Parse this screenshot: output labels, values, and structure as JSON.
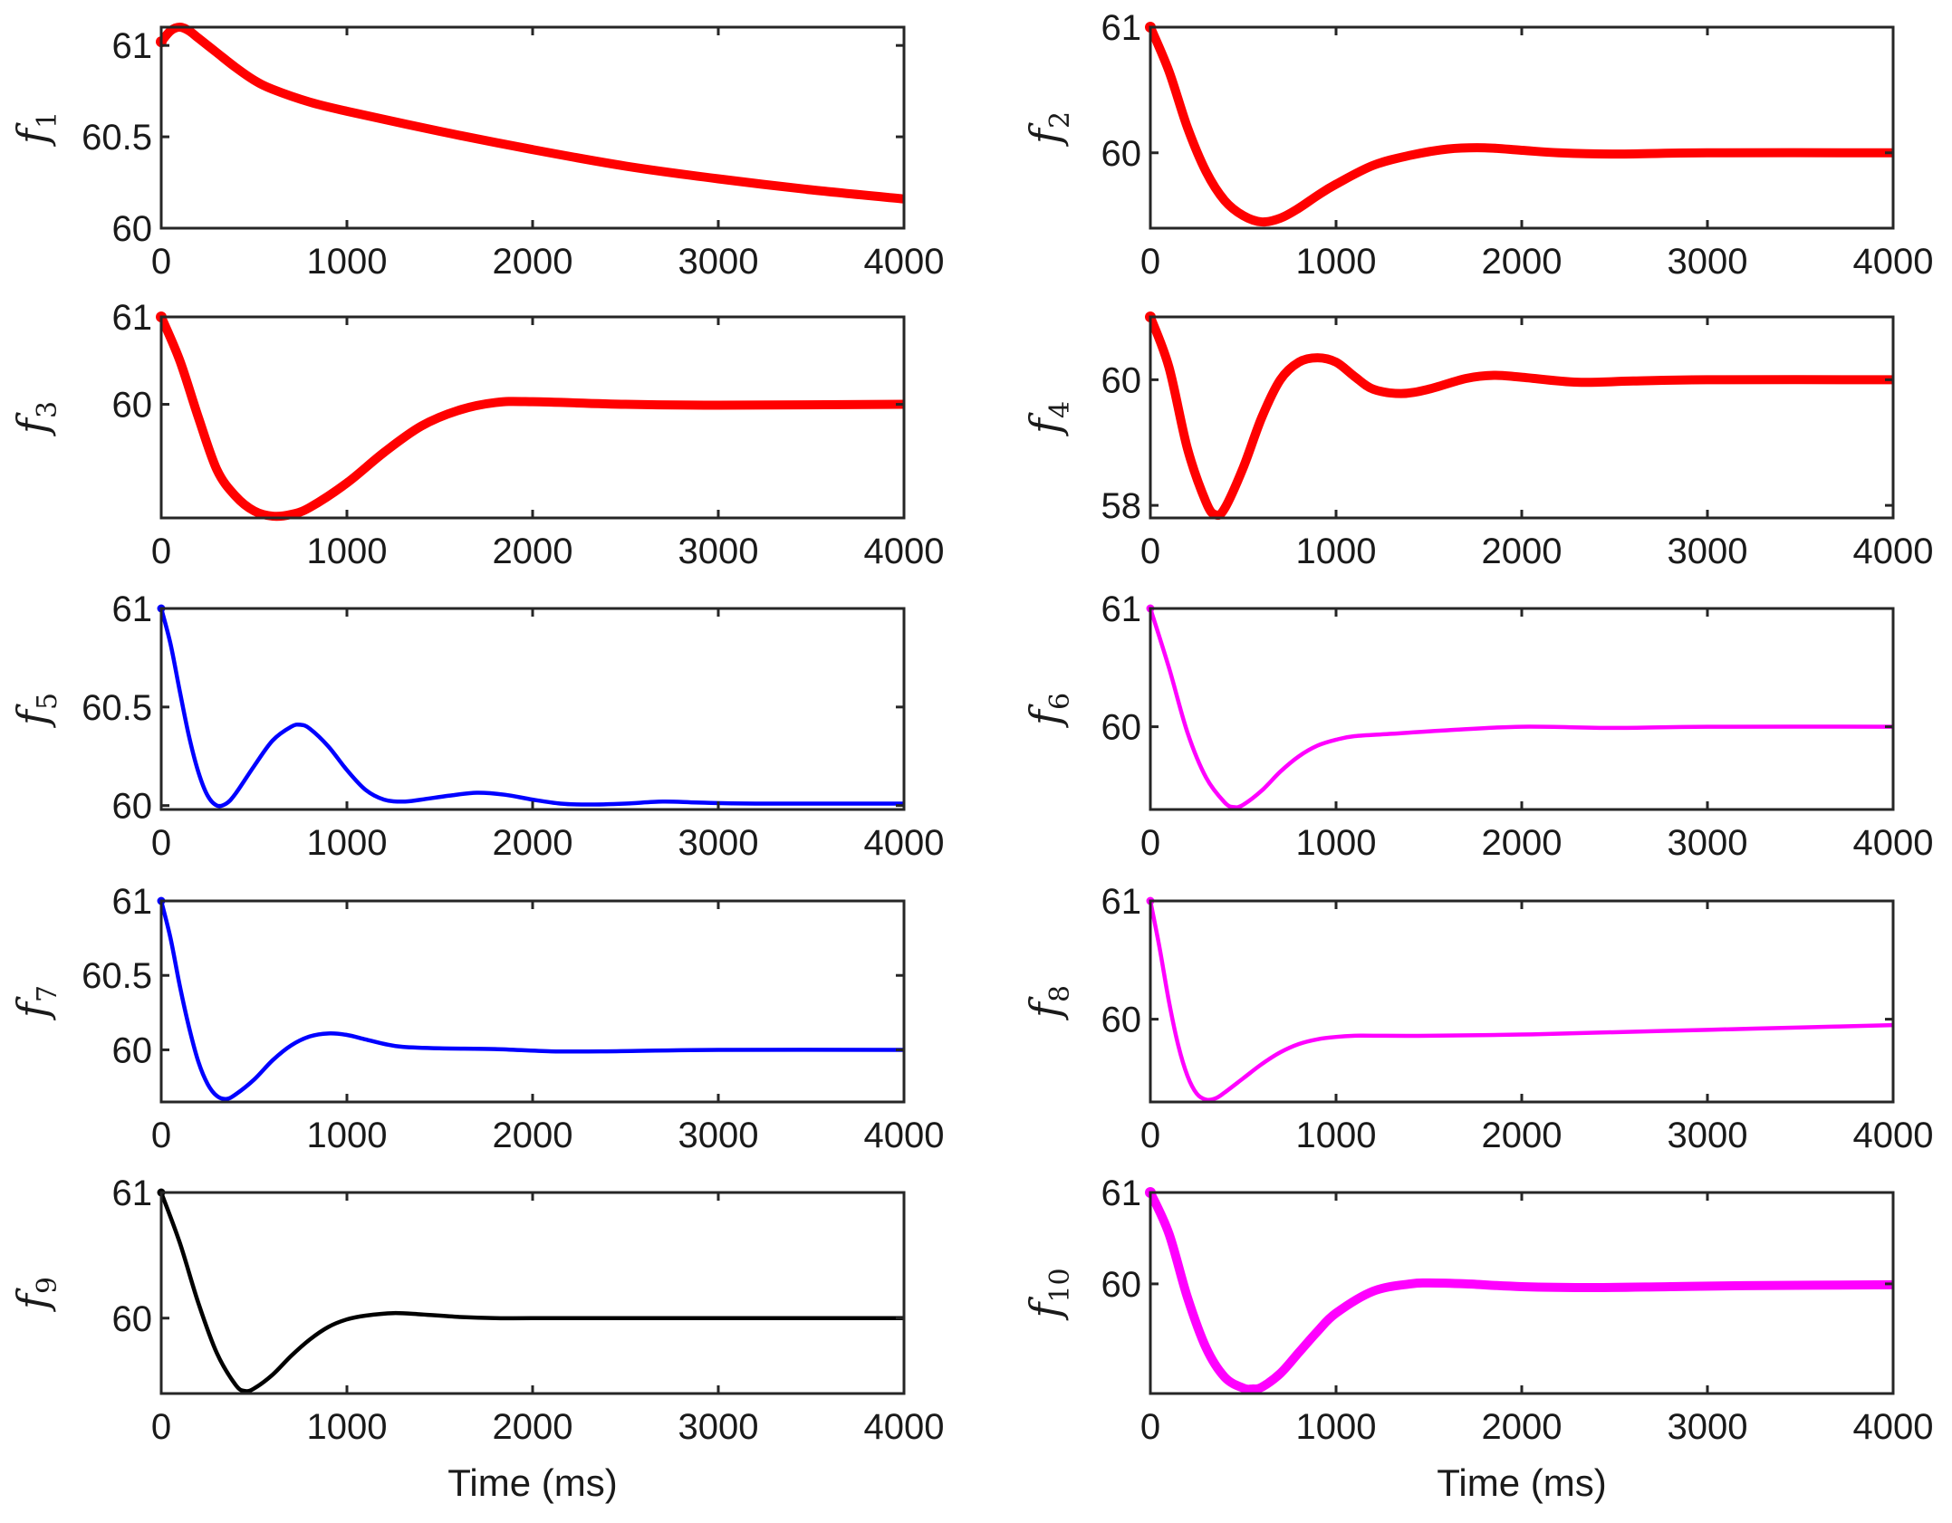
{
  "chart_data": [
    {
      "type": "line",
      "ylabel": "f",
      "subscript": "1",
      "color": "#ff0000",
      "thick": true,
      "xlim": [
        0,
        4000
      ],
      "ylim": [
        60,
        61.1
      ],
      "yticks": [
        60,
        60.5,
        61
      ],
      "ytick_labels": [
        "60",
        "60.5",
        "61"
      ],
      "xticks": [
        0,
        1000,
        2000,
        3000,
        4000
      ],
      "xtick_labels": [
        "0",
        "1000",
        "2000",
        "3000",
        "4000"
      ],
      "xlabel": "",
      "x": [
        0,
        50,
        100,
        150,
        200,
        300,
        400,
        500,
        600,
        800,
        1000,
        1500,
        2000,
        2500,
        3000,
        3500,
        4000
      ],
      "y": [
        61.02,
        61.08,
        61.1,
        61.08,
        61.04,
        60.96,
        60.88,
        60.81,
        60.76,
        60.69,
        60.64,
        60.53,
        60.43,
        60.34,
        60.27,
        60.21,
        60.16
      ]
    },
    {
      "type": "line",
      "ylabel": "f",
      "subscript": "2",
      "color": "#ff0000",
      "thick": true,
      "xlim": [
        0,
        4000
      ],
      "ylim": [
        59.4,
        61
      ],
      "yticks": [
        60,
        61
      ],
      "ytick_labels": [
        "60",
        "61"
      ],
      "xticks": [
        0,
        1000,
        2000,
        3000,
        4000
      ],
      "xtick_labels": [
        "0",
        "1000",
        "2000",
        "3000",
        "4000"
      ],
      "xlabel": "",
      "x": [
        0,
        100,
        200,
        300,
        400,
        500,
        600,
        700,
        800,
        900,
        1000,
        1200,
        1400,
        1600,
        1800,
        2000,
        2200,
        2500,
        3000,
        4000
      ],
      "y": [
        61,
        60.65,
        60.2,
        59.85,
        59.62,
        59.5,
        59.45,
        59.48,
        59.56,
        59.66,
        59.75,
        59.9,
        59.98,
        60.03,
        60.04,
        60.02,
        60.0,
        59.99,
        60.0,
        60.0
      ]
    },
    {
      "type": "line",
      "ylabel": "f",
      "subscript": "3",
      "color": "#ff0000",
      "thick": true,
      "xlim": [
        0,
        4000
      ],
      "ylim": [
        58.7,
        61
      ],
      "yticks": [
        60,
        61
      ],
      "ytick_labels": [
        "60",
        "61"
      ],
      "xticks": [
        0,
        1000,
        2000,
        3000,
        4000
      ],
      "xtick_labels": [
        "0",
        "1000",
        "2000",
        "3000",
        "4000"
      ],
      "xlabel": "",
      "x": [
        0,
        100,
        200,
        300,
        400,
        500,
        600,
        700,
        800,
        1000,
        1200,
        1400,
        1600,
        1800,
        2000,
        2500,
        3000,
        4000
      ],
      "y": [
        61,
        60.5,
        59.85,
        59.25,
        58.95,
        58.78,
        58.72,
        58.74,
        58.82,
        59.1,
        59.45,
        59.75,
        59.93,
        60.02,
        60.03,
        60.0,
        59.99,
        60.0
      ]
    },
    {
      "type": "line",
      "ylabel": "f",
      "subscript": "4",
      "color": "#ff0000",
      "thick": true,
      "xlim": [
        0,
        4000
      ],
      "ylim": [
        57.8,
        61
      ],
      "yticks": [
        58,
        60
      ],
      "ytick_labels": [
        "58",
        "60"
      ],
      "xticks": [
        0,
        1000,
        2000,
        3000,
        4000
      ],
      "xtick_labels": [
        "0",
        "1000",
        "2000",
        "3000",
        "4000"
      ],
      "xlabel": "",
      "x": [
        0,
        100,
        200,
        300,
        350,
        400,
        500,
        600,
        700,
        800,
        900,
        1000,
        1100,
        1200,
        1350,
        1500,
        1700,
        1850,
        2000,
        2300,
        2600,
        3000,
        4000
      ],
      "y": [
        61,
        60.2,
        58.9,
        58.05,
        57.85,
        57.95,
        58.6,
        59.4,
        60.0,
        60.28,
        60.35,
        60.28,
        60.05,
        59.85,
        59.78,
        59.85,
        60.02,
        60.07,
        60.04,
        59.96,
        59.98,
        60.0,
        60.0
      ]
    },
    {
      "type": "line",
      "ylabel": "f",
      "subscript": "5",
      "color": "#0000ff",
      "thick": false,
      "xlim": [
        0,
        4000
      ],
      "ylim": [
        59.98,
        61
      ],
      "yticks": [
        60,
        60.5,
        61
      ],
      "ytick_labels": [
        "60",
        "60.5",
        "61"
      ],
      "xticks": [
        0,
        1000,
        2000,
        3000,
        4000
      ],
      "xtick_labels": [
        "0",
        "1000",
        "2000",
        "3000",
        "4000"
      ],
      "xlabel": "",
      "x": [
        0,
        50,
        100,
        150,
        200,
        250,
        300,
        350,
        400,
        500,
        600,
        700,
        750,
        800,
        900,
        1000,
        1100,
        1200,
        1300,
        1400,
        1550,
        1700,
        1850,
        2000,
        2150,
        2300,
        2500,
        2700,
        2900,
        3200,
        4000
      ],
      "y": [
        61,
        60.82,
        60.58,
        60.35,
        60.17,
        60.05,
        60.0,
        60.01,
        60.06,
        60.2,
        60.33,
        60.4,
        60.41,
        60.39,
        60.3,
        60.18,
        60.08,
        60.03,
        60.02,
        60.03,
        60.05,
        60.065,
        60.055,
        60.03,
        60.01,
        60.005,
        60.01,
        60.02,
        60.015,
        60.01,
        60.01
      ]
    },
    {
      "type": "line",
      "ylabel": "f",
      "subscript": "6",
      "color": "#ff00ff",
      "thick": false,
      "xlim": [
        0,
        4000
      ],
      "ylim": [
        59.3,
        61
      ],
      "yticks": [
        60,
        61
      ],
      "ytick_labels": [
        "60",
        "61"
      ],
      "xticks": [
        0,
        1000,
        2000,
        3000,
        4000
      ],
      "xtick_labels": [
        "0",
        "1000",
        "2000",
        "3000",
        "4000"
      ],
      "xlabel": "",
      "x": [
        0,
        100,
        200,
        300,
        400,
        450,
        500,
        600,
        700,
        800,
        900,
        1000,
        1100,
        1300,
        1600,
        2000,
        2500,
        3000,
        4000
      ],
      "y": [
        61,
        60.5,
        59.95,
        59.57,
        59.36,
        59.32,
        59.34,
        59.46,
        59.62,
        59.75,
        59.84,
        59.89,
        59.92,
        59.94,
        59.97,
        60.0,
        59.99,
        60.0,
        60.0
      ]
    },
    {
      "type": "line",
      "ylabel": "f",
      "subscript": "7",
      "color": "#0000ff",
      "thick": false,
      "xlim": [
        0,
        4000
      ],
      "ylim": [
        59.65,
        61
      ],
      "yticks": [
        60,
        60.5,
        61
      ],
      "ytick_labels": [
        "60",
        "60.5",
        "61"
      ],
      "xticks": [
        0,
        1000,
        2000,
        3000,
        4000
      ],
      "xtick_labels": [
        "0",
        "1000",
        "2000",
        "3000",
        "4000"
      ],
      "xlabel": "",
      "x": [
        0,
        50,
        100,
        150,
        200,
        250,
        300,
        350,
        400,
        500,
        600,
        700,
        800,
        900,
        1000,
        1100,
        1200,
        1300,
        1500,
        1800,
        2100,
        2400,
        3000,
        4000
      ],
      "y": [
        61,
        60.75,
        60.43,
        60.15,
        59.92,
        59.77,
        59.69,
        59.67,
        59.7,
        59.8,
        59.93,
        60.03,
        60.09,
        60.11,
        60.1,
        60.07,
        60.04,
        60.02,
        60.01,
        60.005,
        59.99,
        59.99,
        60.0,
        60.0
      ]
    },
    {
      "type": "line",
      "ylabel": "f",
      "subscript": "8",
      "color": "#ff00ff",
      "thick": false,
      "xlim": [
        0,
        4000
      ],
      "ylim": [
        59.3,
        61
      ],
      "yticks": [
        60,
        61
      ],
      "ytick_labels": [
        "60",
        "61"
      ],
      "xticks": [
        0,
        1000,
        2000,
        3000,
        4000
      ],
      "xtick_labels": [
        "0",
        "1000",
        "2000",
        "3000",
        "4000"
      ],
      "xlabel": "",
      "x": [
        0,
        50,
        100,
        150,
        200,
        250,
        300,
        350,
        400,
        500,
        600,
        700,
        800,
        900,
        1000,
        1100,
        1200,
        1500,
        2000,
        2500,
        3000,
        3500,
        4000
      ],
      "y": [
        61,
        60.6,
        60.15,
        59.78,
        59.52,
        59.37,
        59.32,
        59.33,
        59.38,
        59.5,
        59.62,
        59.72,
        59.79,
        59.83,
        59.85,
        59.86,
        59.86,
        59.86,
        59.87,
        59.89,
        59.91,
        59.93,
        59.95
      ]
    },
    {
      "type": "line",
      "ylabel": "f",
      "subscript": "9",
      "color": "#000000",
      "thick": false,
      "xlim": [
        0,
        4000
      ],
      "ylim": [
        59.4,
        61
      ],
      "yticks": [
        60,
        61
      ],
      "ytick_labels": [
        "60",
        "61"
      ],
      "xticks": [
        0,
        1000,
        2000,
        3000,
        4000
      ],
      "xtick_labels": [
        "0",
        "1000",
        "2000",
        "3000",
        "4000"
      ],
      "xlabel": "Time (ms)",
      "x": [
        0,
        100,
        200,
        300,
        400,
        450,
        500,
        600,
        700,
        800,
        900,
        1000,
        1100,
        1250,
        1400,
        1600,
        1800,
        2000,
        2500,
        3000,
        4000
      ],
      "y": [
        61,
        60.6,
        60.12,
        59.72,
        59.47,
        59.42,
        59.44,
        59.55,
        59.7,
        59.83,
        59.93,
        59.99,
        60.02,
        60.04,
        60.03,
        60.01,
        60.0,
        60.0,
        60.0,
        60.0,
        60.0
      ]
    },
    {
      "type": "line",
      "ylabel": "f",
      "subscript": "10",
      "color": "#ff00ff",
      "thick": true,
      "xlim": [
        0,
        4000
      ],
      "ylim": [
        58.8,
        61
      ],
      "yticks": [
        60,
        61
      ],
      "ytick_labels": [
        "60",
        "61"
      ],
      "xticks": [
        0,
        1000,
        2000,
        3000,
        4000
      ],
      "xtick_labels": [
        "0",
        "1000",
        "2000",
        "3000",
        "4000"
      ],
      "xlabel": "Time (ms)",
      "x": [
        0,
        100,
        200,
        300,
        400,
        500,
        550,
        600,
        700,
        800,
        900,
        1000,
        1200,
        1400,
        1500,
        1700,
        2000,
        2400,
        2800,
        3200,
        4000
      ],
      "y": [
        61,
        60.55,
        59.85,
        59.3,
        58.98,
        58.86,
        58.85,
        58.87,
        59.02,
        59.25,
        59.48,
        59.68,
        59.92,
        60.0,
        60.01,
        60.0,
        59.97,
        59.96,
        59.97,
        59.98,
        59.99
      ]
    }
  ]
}
